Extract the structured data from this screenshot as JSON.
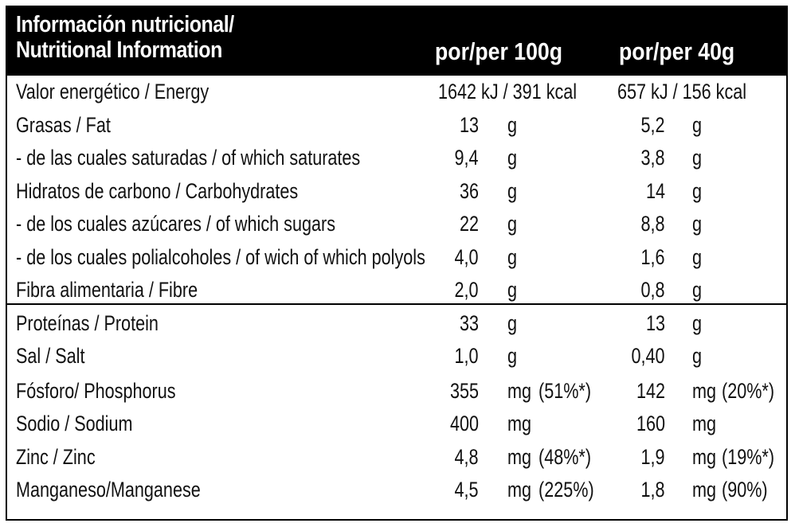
{
  "header": {
    "title_line1": "Información nutricional/",
    "title_line2": "Nutritional Information",
    "col1": "por/per 100g",
    "col2": "por/per 40g"
  },
  "energy": {
    "label": "Valor energético / Energy",
    "per100": "1642 kJ / 391 kcal",
    "per40": "657 kJ / 156 kcal"
  },
  "nutrients": [
    {
      "label": "Grasas / Fat",
      "v100": "13",
      "u100": "g",
      "p100": "",
      "v40": "5,2",
      "u40": "g",
      "p40": ""
    },
    {
      "label": " - de las cuales saturadas / of which saturates",
      "v100": "9,4",
      "u100": "g",
      "p100": "",
      "v40": "3,8",
      "u40": "g",
      "p40": ""
    },
    {
      "label": "Hidratos de carbono / Carbohydrates",
      "v100": "36",
      "u100": "g",
      "p100": "",
      "v40": "14",
      "u40": "g",
      "p40": ""
    },
    {
      "label": " - de los cuales azúcares / of which sugars",
      "v100": "22",
      "u100": "g",
      "p100": "",
      "v40": "8,8",
      "u40": "g",
      "p40": ""
    },
    {
      "label": " - de los cuales polialcoholes / of wich of which polyols",
      "v100": "4,0",
      "u100": "g",
      "p100": "",
      "v40": "1,6",
      "u40": "g",
      "p40": ""
    },
    {
      "label": "Fibra alimentaria / Fibre",
      "v100": "2,0",
      "u100": "g",
      "p100": "",
      "v40": "0,8",
      "u40": "g",
      "p40": ""
    },
    {
      "label": "Proteínas / Protein",
      "v100": "33",
      "u100": "g",
      "p100": "",
      "v40": "13",
      "u40": "g",
      "p40": ""
    },
    {
      "label": "Sal / Salt",
      "v100": "1,0",
      "u100": "g",
      "p100": "",
      "v40": "0,40",
      "u40": "g",
      "p40": ""
    }
  ],
  "minerals": [
    {
      "label": "Fósforo/ Phosphorus",
      "v100": "355",
      "u100": "mg",
      "p100": "(51%*)",
      "v40": "142",
      "u40": "mg",
      "p40": "(20%*)"
    },
    {
      "label": "Sodio / Sodium",
      "v100": "400",
      "u100": "mg",
      "p100": "",
      "v40": "160",
      "u40": "mg",
      "p40": ""
    },
    {
      "label": "Zinc / Zinc",
      "v100": "4,8",
      "u100": "mg",
      "p100": "(48%*)",
      "v40": "1,9",
      "u40": "mg",
      "p40": "(19%*)"
    },
    {
      "label": "Manganeso/Manganese",
      "v100": "4,5",
      "u100": "mg",
      "p100": "(225%)",
      "v40": "1,8",
      "u40": "mg",
      "p40": "(90%)"
    }
  ]
}
